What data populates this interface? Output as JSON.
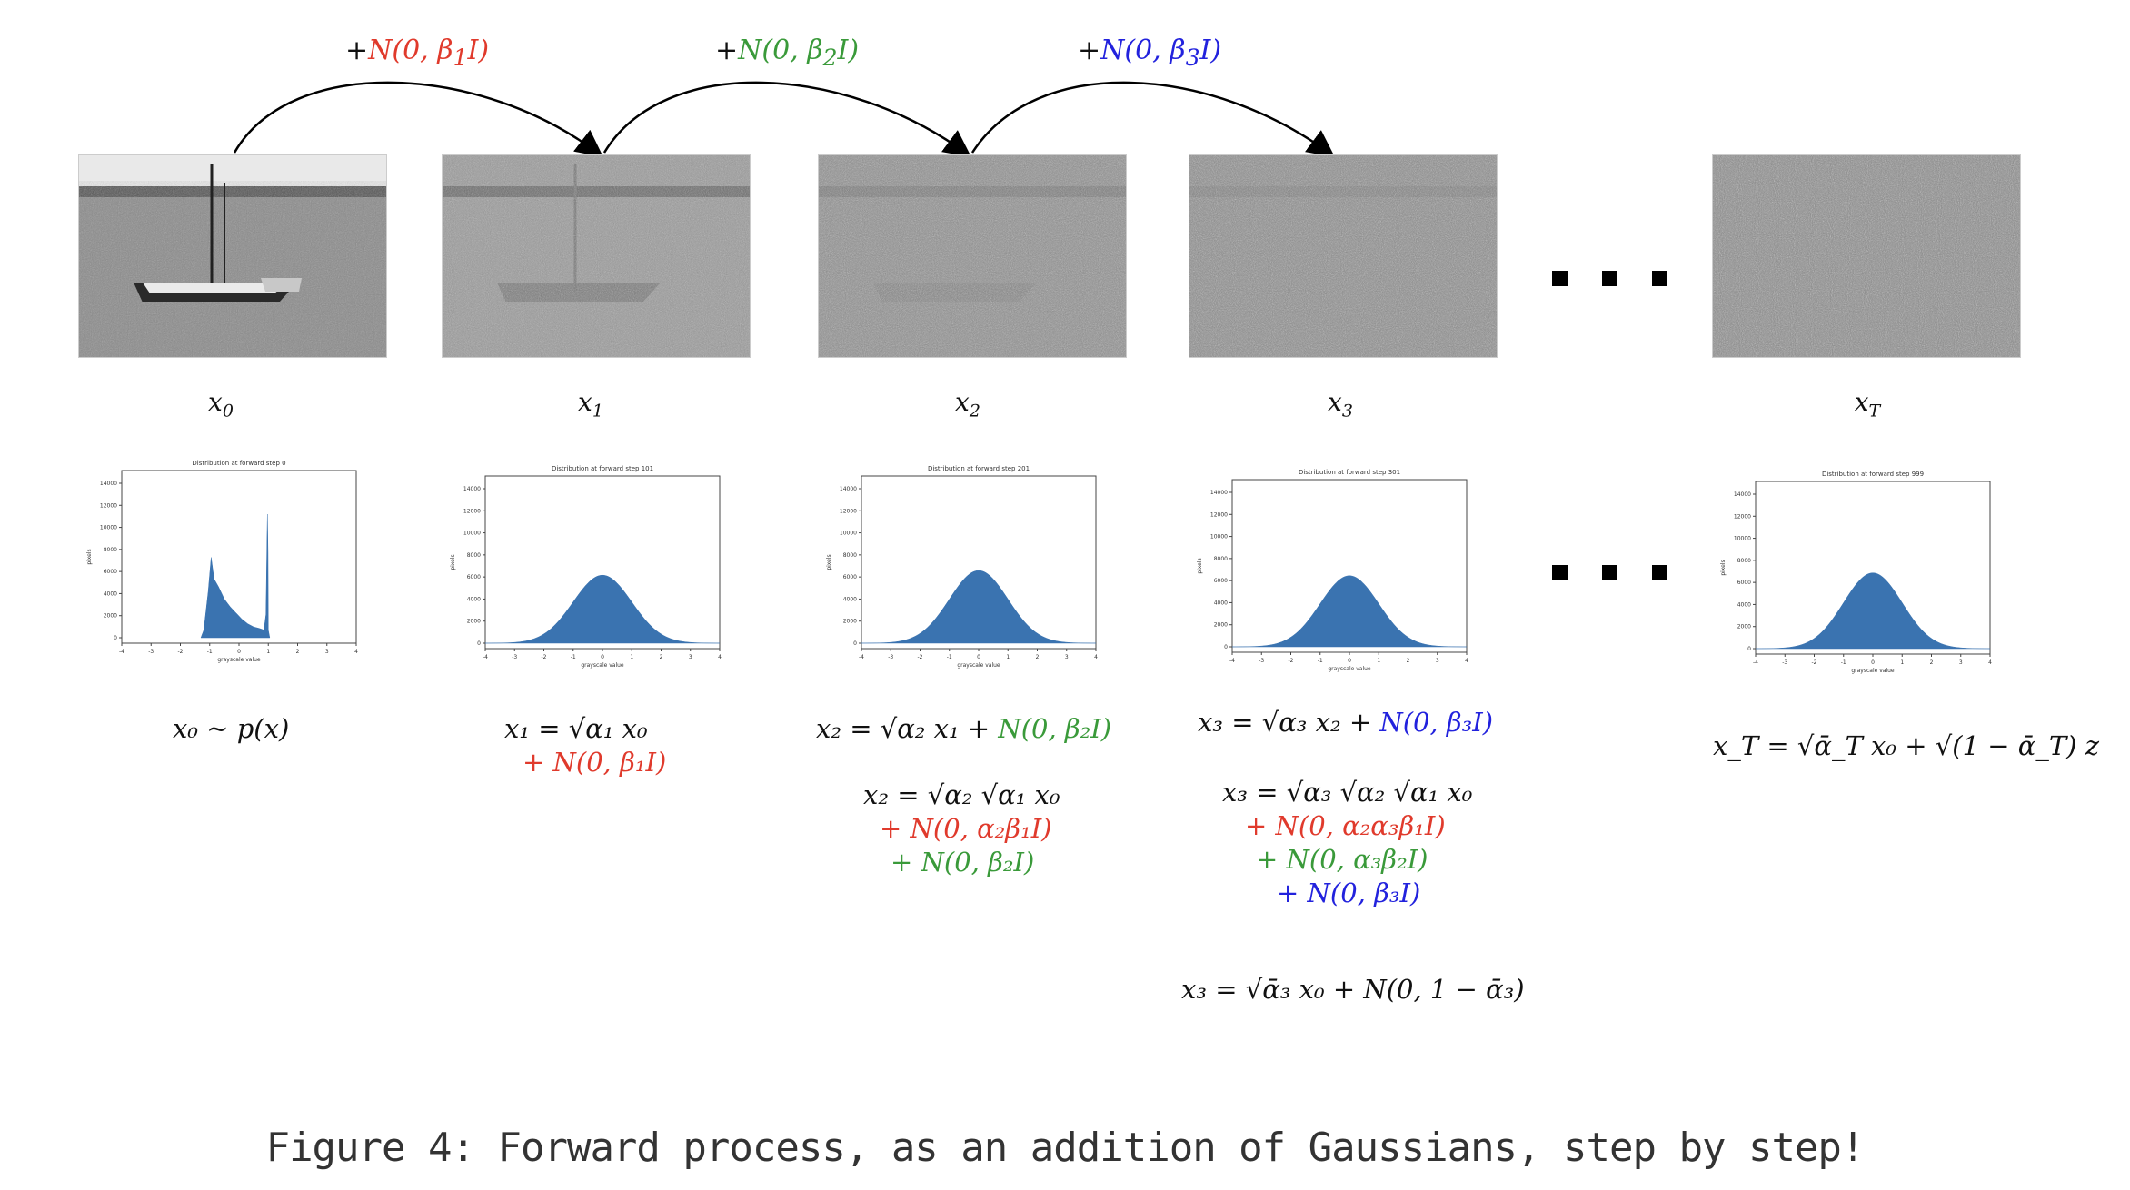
{
  "arrows": [
    {
      "label_plus": "+",
      "label_noise": "N(0, β",
      "label_sub": "1",
      "label_tail": "I)",
      "color": "#e03a2c"
    },
    {
      "label_plus": "+",
      "label_noise": "N(0, β",
      "label_sub": "2",
      "label_tail": "I)",
      "color": "#3a9a3a"
    },
    {
      "label_plus": "+",
      "label_noise": "N(0, β",
      "label_sub": "3",
      "label_tail": "I)",
      "color": "#2222dd"
    }
  ],
  "steps": [
    {
      "var": "x",
      "sub": "0"
    },
    {
      "var": "x",
      "sub": "1"
    },
    {
      "var": "x",
      "sub": "2"
    },
    {
      "var": "x",
      "sub": "3"
    },
    {
      "var": "x",
      "sub": "T"
    }
  ],
  "histograms": [
    {
      "title": "Distribution at forward step 0",
      "xlabel": "grayscale value",
      "ylabel": "pixels",
      "yticks": [
        "0",
        "2000",
        "4000",
        "6000",
        "8000",
        "10000",
        "12000",
        "14000"
      ],
      "xticks": [
        "-4",
        "-3",
        "-2",
        "-1",
        "0",
        "1",
        "2",
        "3",
        "4"
      ]
    },
    {
      "title": "Distribution at forward step 101",
      "xlabel": "grayscale value",
      "ylabel": "pixels",
      "yticks": [
        "0",
        "2000",
        "4000",
        "6000",
        "8000",
        "10000",
        "12000",
        "14000"
      ],
      "xticks": [
        "-4",
        "-3",
        "-2",
        "-1",
        "0",
        "1",
        "2",
        "3",
        "4"
      ]
    },
    {
      "title": "Distribution at forward step 201",
      "xlabel": "grayscale value",
      "ylabel": "pixels",
      "yticks": [
        "0",
        "2000",
        "4000",
        "6000",
        "8000",
        "10000",
        "12000",
        "14000"
      ],
      "xticks": [
        "-4",
        "-3",
        "-2",
        "-1",
        "0",
        "1",
        "2",
        "3",
        "4"
      ]
    },
    {
      "title": "Distribution at forward step 301",
      "xlabel": "grayscale value",
      "ylabel": "pixels",
      "yticks": [
        "0",
        "2000",
        "4000",
        "6000",
        "8000",
        "10000",
        "12000",
        "14000"
      ],
      "xticks": [
        "-4",
        "-3",
        "-2",
        "-1",
        "0",
        "1",
        "2",
        "3",
        "4"
      ]
    },
    {
      "title": "Distribution at forward step 999",
      "xlabel": "grayscale value",
      "ylabel": "pixels",
      "yticks": [
        "0",
        "2000",
        "4000",
        "6000",
        "8000",
        "10000",
        "12000",
        "14000"
      ],
      "xticks": [
        "-4",
        "-3",
        "-2",
        "-1",
        "0",
        "1",
        "2",
        "3",
        "4"
      ]
    }
  ],
  "equations": {
    "eq0": "x₀ ~ p(x)",
    "eq1_a": "x₁ = √α₁ x₀",
    "eq1_b": "+ N(0, β₁I)",
    "eq2_a_black": "x₂ = √α₂ x₁ + ",
    "eq2_a_green": "N(0, β₂I)",
    "eq2_b": "x₂ = √α₂ √α₁ x₀",
    "eq2_c": "+ N(0, α₂β₁I)",
    "eq2_d": "+ N(0, β₂I)",
    "eq3_a_black": "x₃ = √α₃ x₂ + ",
    "eq3_a_blue": "N(0, β₃I)",
    "eq3_b": "x₃ = √α₃ √α₂ √α₁ x₀",
    "eq3_c": "+ N(0, α₂α₃β₁I)",
    "eq3_d": "+ N(0, α₃β₂I)",
    "eq3_e": "+ N(0, β₃I)",
    "eq3_f": "x₃ = √ᾱ₃ x₀ + N(0, 1 − ᾱ₃)",
    "eqT": "x_T = √ᾱ_T x₀ + √(1 − ᾱ_T) z"
  },
  "caption": "Figure 4: Forward process, as an addition of Gaussians, step by step!",
  "colors": {
    "hist_fill": "#3a73b0",
    "red": "#e03a2c",
    "green": "#3a9a3a",
    "blue": "#2222dd"
  }
}
